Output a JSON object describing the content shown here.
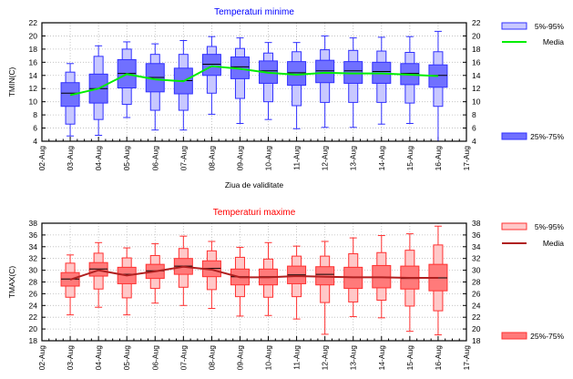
{
  "chart_data": [
    {
      "type": "box",
      "title": "Temperaturi minime",
      "ylabel": "TMIN(C)",
      "xlabel": "Ziua de validitate",
      "ylim": [
        4,
        22
      ],
      "yticks": [
        4,
        6,
        8,
        10,
        12,
        14,
        16,
        18,
        20,
        22
      ],
      "grid": true,
      "colors": {
        "title": "#0000ff",
        "box_inner": "#7070ff",
        "box_outer": "#c8c8ff",
        "edge": "#3030ff",
        "mean": "#00ee00"
      },
      "legend": {
        "placement": "right",
        "items": [
          "5%-95%",
          "Media",
          "25%-75%"
        ]
      },
      "xticks": [
        "02-Aug",
        "03-Aug",
        "04-Aug",
        "05-Aug",
        "06-Aug",
        "07-Aug",
        "08-Aug",
        "09-Aug",
        "10-Aug",
        "11-Aug",
        "12-Aug",
        "13-Aug",
        "14-Aug",
        "15-Aug",
        "16-Aug",
        "17-Aug"
      ],
      "categories": [
        "03-Aug",
        "04-Aug",
        "05-Aug",
        "06-Aug",
        "07-Aug",
        "08-Aug",
        "09-Aug",
        "10-Aug",
        "11-Aug",
        "12-Aug",
        "13-Aug",
        "14-Aug",
        "15-Aug",
        "16-Aug"
      ],
      "min": [
        4.8,
        4.9,
        7.6,
        5.7,
        5.7,
        8.1,
        6.7,
        7.3,
        5.9,
        6.1,
        6.1,
        6.6,
        6.7,
        4.0
      ],
      "p5": [
        6.6,
        7.3,
        9.6,
        8.7,
        8.7,
        11.3,
        10.5,
        10.0,
        9.4,
        9.9,
        9.9,
        9.9,
        9.8,
        9.3
      ],
      "p25": [
        9.3,
        9.8,
        12.1,
        11.5,
        11.2,
        14.0,
        13.5,
        12.8,
        12.5,
        12.9,
        12.8,
        12.8,
        12.6,
        12.2
      ],
      "median": [
        11.3,
        12.0,
        14.3,
        13.7,
        13.2,
        15.7,
        15.3,
        14.7,
        14.4,
        14.7,
        14.7,
        14.6,
        14.3,
        14.0
      ],
      "p75": [
        12.9,
        14.2,
        16.4,
        15.8,
        15.1,
        17.2,
        16.8,
        16.2,
        16.1,
        16.3,
        16.1,
        16.0,
        15.8,
        15.6
      ],
      "p95": [
        14.5,
        16.9,
        18.0,
        17.2,
        17.2,
        18.4,
        18.1,
        17.4,
        17.6,
        17.9,
        17.8,
        17.7,
        17.5,
        17.6
      ],
      "max": [
        15.8,
        18.5,
        19.1,
        18.8,
        19.3,
        19.9,
        19.7,
        19.0,
        19.0,
        20.0,
        19.7,
        19.8,
        19.9,
        20.7
      ],
      "mean": [
        11.0,
        12.0,
        14.2,
        13.4,
        13.1,
        15.4,
        15.0,
        14.4,
        14.1,
        14.4,
        14.3,
        14.3,
        14.1,
        13.9
      ]
    },
    {
      "type": "box",
      "title": "Temperaturi maxime",
      "ylabel": "TMAX(C)",
      "xlabel": "",
      "ylim": [
        18,
        38
      ],
      "yticks": [
        18,
        20,
        22,
        24,
        26,
        28,
        30,
        32,
        34,
        36,
        38
      ],
      "grid": true,
      "colors": {
        "title": "#ff0000",
        "box_inner": "#ff7a7a",
        "box_outer": "#ffc8c8",
        "edge": "#ff3030",
        "mean": "#b02020"
      },
      "legend": {
        "placement": "right",
        "items": [
          "5%-95%",
          "Media",
          "25%-75%"
        ]
      },
      "xticks": [
        "02-Aug",
        "03-Aug",
        "04-Aug",
        "05-Aug",
        "06-Aug",
        "07-Aug",
        "08-Aug",
        "09-Aug",
        "10-Aug",
        "11-Aug",
        "12-Aug",
        "13-Aug",
        "14-Aug",
        "15-Aug",
        "16-Aug",
        "17-Aug"
      ],
      "categories": [
        "03-Aug",
        "04-Aug",
        "05-Aug",
        "06-Aug",
        "07-Aug",
        "08-Aug",
        "09-Aug",
        "10-Aug",
        "11-Aug",
        "12-Aug",
        "13-Aug",
        "14-Aug",
        "15-Aug",
        "16-Aug"
      ],
      "min": [
        22.4,
        23.7,
        22.4,
        24.4,
        24.0,
        23.5,
        22.2,
        22.3,
        21.7,
        19.1,
        22.1,
        21.9,
        19.6,
        19.0
      ],
      "p5": [
        25.4,
        26.8,
        25.3,
        26.9,
        27.1,
        26.7,
        25.5,
        25.4,
        25.5,
        24.5,
        24.6,
        24.9,
        23.9,
        23.1
      ],
      "p25": [
        27.3,
        29.0,
        27.7,
        28.6,
        29.3,
        28.9,
        27.5,
        27.5,
        27.7,
        27.5,
        26.9,
        27.0,
        26.8,
        26.5
      ],
      "median": [
        28.5,
        30.2,
        29.3,
        29.9,
        30.7,
        30.3,
        28.9,
        28.9,
        29.2,
        29.3,
        28.8,
        28.8,
        28.6,
        28.7
      ],
      "p75": [
        29.6,
        31.3,
        30.5,
        31.0,
        32.0,
        31.6,
        30.2,
        30.2,
        30.7,
        30.6,
        30.5,
        30.8,
        30.7,
        31.0
      ],
      "p95": [
        31.2,
        32.9,
        32.1,
        32.5,
        33.7,
        33.3,
        32.2,
        31.9,
        32.4,
        32.4,
        32.8,
        33.0,
        33.4,
        34.3
      ],
      "max": [
        32.6,
        34.7,
        33.8,
        34.5,
        35.8,
        34.9,
        33.9,
        34.7,
        34.1,
        34.9,
        35.5,
        35.9,
        36.2,
        37.5
      ],
      "mean": [
        28.4,
        30.0,
        29.1,
        29.8,
        30.6,
        30.1,
        28.8,
        28.8,
        29.0,
        28.9,
        28.8,
        28.8,
        28.7,
        28.7
      ]
    }
  ]
}
